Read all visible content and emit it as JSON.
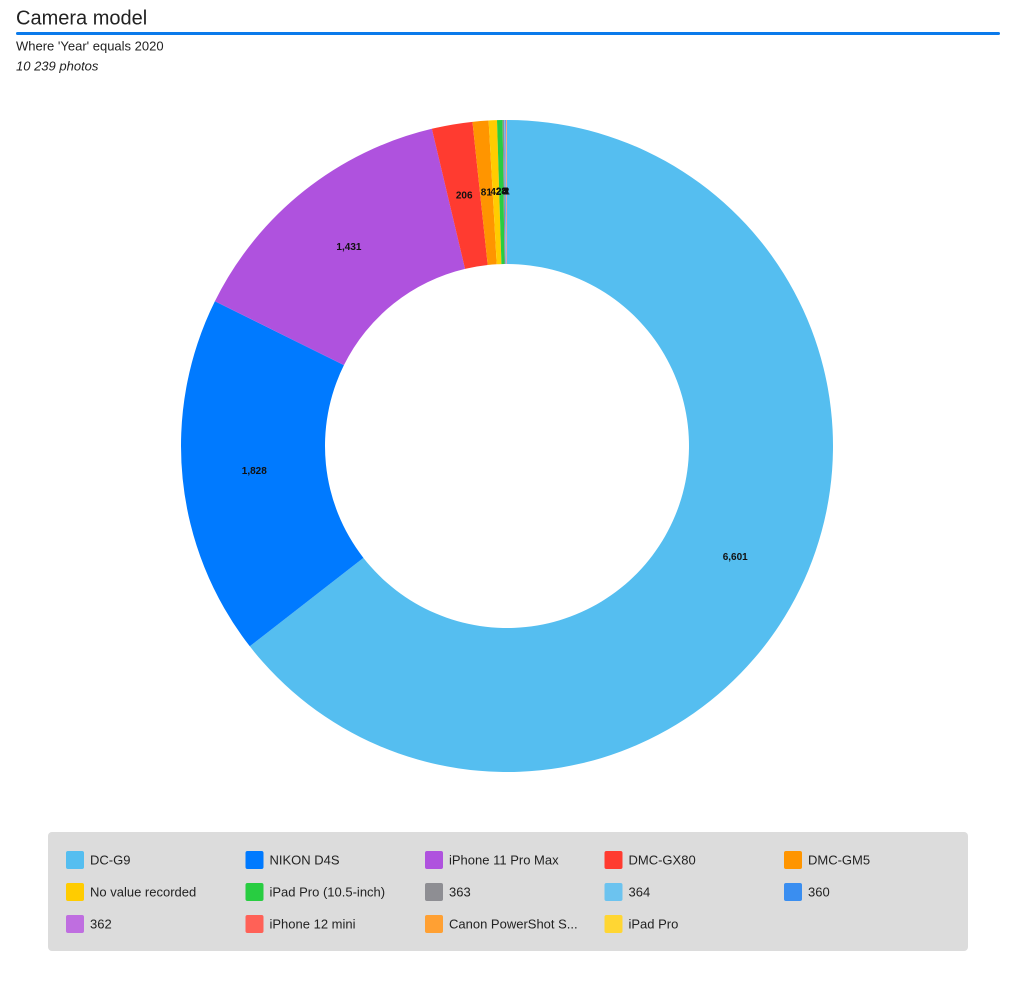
{
  "chart_data": {
    "type": "donut",
    "title": "Camera model",
    "subtitle": "Where  'Year' equals 2020",
    "note": "10 239 photos",
    "categories": [
      "DC-G9",
      "NIKON D4S",
      "iPhone 11 Pro Max",
      "DMC-GX80",
      "DMC-GM5",
      "No value recorded",
      "iPad Pro (10.5-inch)",
      "363",
      "364",
      "360",
      "362",
      "iPhone 12 mini",
      "Canon PowerShot S...",
      "iPad Pro"
    ],
    "values": [
      6601,
      1828,
      1431,
      206,
      81,
      42,
      28,
      8,
      4,
      3,
      3,
      2,
      1,
      1
    ],
    "value_labels": [
      "6,601",
      "1,828",
      "1,431",
      "206",
      "81",
      "42",
      "28",
      "8",
      "4",
      "3",
      "3",
      "2",
      "1",
      "1"
    ],
    "colors": [
      "#55bef0",
      "#007aff",
      "#af52de",
      "#ff3b30",
      "#ff9500",
      "#ffcc00",
      "#28cd41",
      "#8e8e93",
      "#6cc3ef",
      "#3a8ef0",
      "#bf6ee0",
      "#ff6157",
      "#ffa033",
      "#ffd633"
    ],
    "legend": "bottom"
  }
}
